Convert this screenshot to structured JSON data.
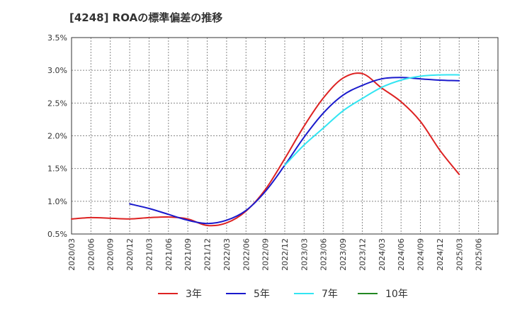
{
  "chart_data": {
    "type": "line",
    "title": "[4248]  ROAの標準偏差の推移",
    "xlabel": "",
    "ylabel": "",
    "ylim": [
      0.5,
      3.5
    ],
    "yticks": [
      "0.5%",
      "1.0%",
      "1.5%",
      "2.0%",
      "2.5%",
      "3.0%",
      "3.5%"
    ],
    "x_ticks": [
      "2020/03",
      "2020/06",
      "2020/09",
      "2020/12",
      "2021/03",
      "2021/06",
      "2021/09",
      "2021/12",
      "2022/03",
      "2022/06",
      "2022/09",
      "2022/12",
      "2023/03",
      "2023/06",
      "2023/09",
      "2023/12",
      "2024/03",
      "2024/06",
      "2024/09",
      "2024/12",
      "2025/03",
      "2025/06"
    ],
    "grid": true,
    "legend_position": "bottom",
    "series": [
      {
        "name": "3年",
        "color": "#dd2222",
        "x": [
          "2020/03",
          "2020/06",
          "2020/09",
          "2020/12",
          "2021/03",
          "2021/06",
          "2021/09",
          "2021/12",
          "2022/03",
          "2022/06",
          "2022/09",
          "2022/12",
          "2023/03",
          "2023/06",
          "2023/09",
          "2023/12",
          "2024/03",
          "2024/06",
          "2024/09",
          "2024/12",
          "2025/03"
        ],
        "values": [
          0.73,
          0.75,
          0.74,
          0.73,
          0.75,
          0.76,
          0.73,
          0.63,
          0.67,
          0.85,
          1.18,
          1.65,
          2.15,
          2.58,
          2.88,
          2.95,
          2.73,
          2.52,
          2.22,
          1.78,
          1.41
        ]
      },
      {
        "name": "5年",
        "color": "#1a1acc",
        "x": [
          "2020/12",
          "2021/03",
          "2021/06",
          "2021/09",
          "2021/12",
          "2022/03",
          "2022/06",
          "2022/09",
          "2022/12",
          "2023/03",
          "2023/06",
          "2023/09",
          "2023/12",
          "2024/03",
          "2024/06",
          "2024/09",
          "2024/12",
          "2025/03"
        ],
        "values": [
          0.96,
          0.89,
          0.8,
          0.71,
          0.66,
          0.71,
          0.86,
          1.15,
          1.55,
          1.98,
          2.35,
          2.62,
          2.77,
          2.87,
          2.89,
          2.87,
          2.85,
          2.84
        ]
      },
      {
        "name": "7年",
        "color": "#33e5f2",
        "x": [
          "2022/12",
          "2023/03",
          "2023/06",
          "2023/09",
          "2023/12",
          "2024/03",
          "2024/06",
          "2024/09",
          "2024/12",
          "2025/03"
        ],
        "values": [
          1.55,
          1.86,
          2.12,
          2.38,
          2.57,
          2.74,
          2.85,
          2.91,
          2.93,
          2.93
        ]
      },
      {
        "name": "10年",
        "color": "#228822",
        "x": [],
        "values": []
      }
    ]
  }
}
